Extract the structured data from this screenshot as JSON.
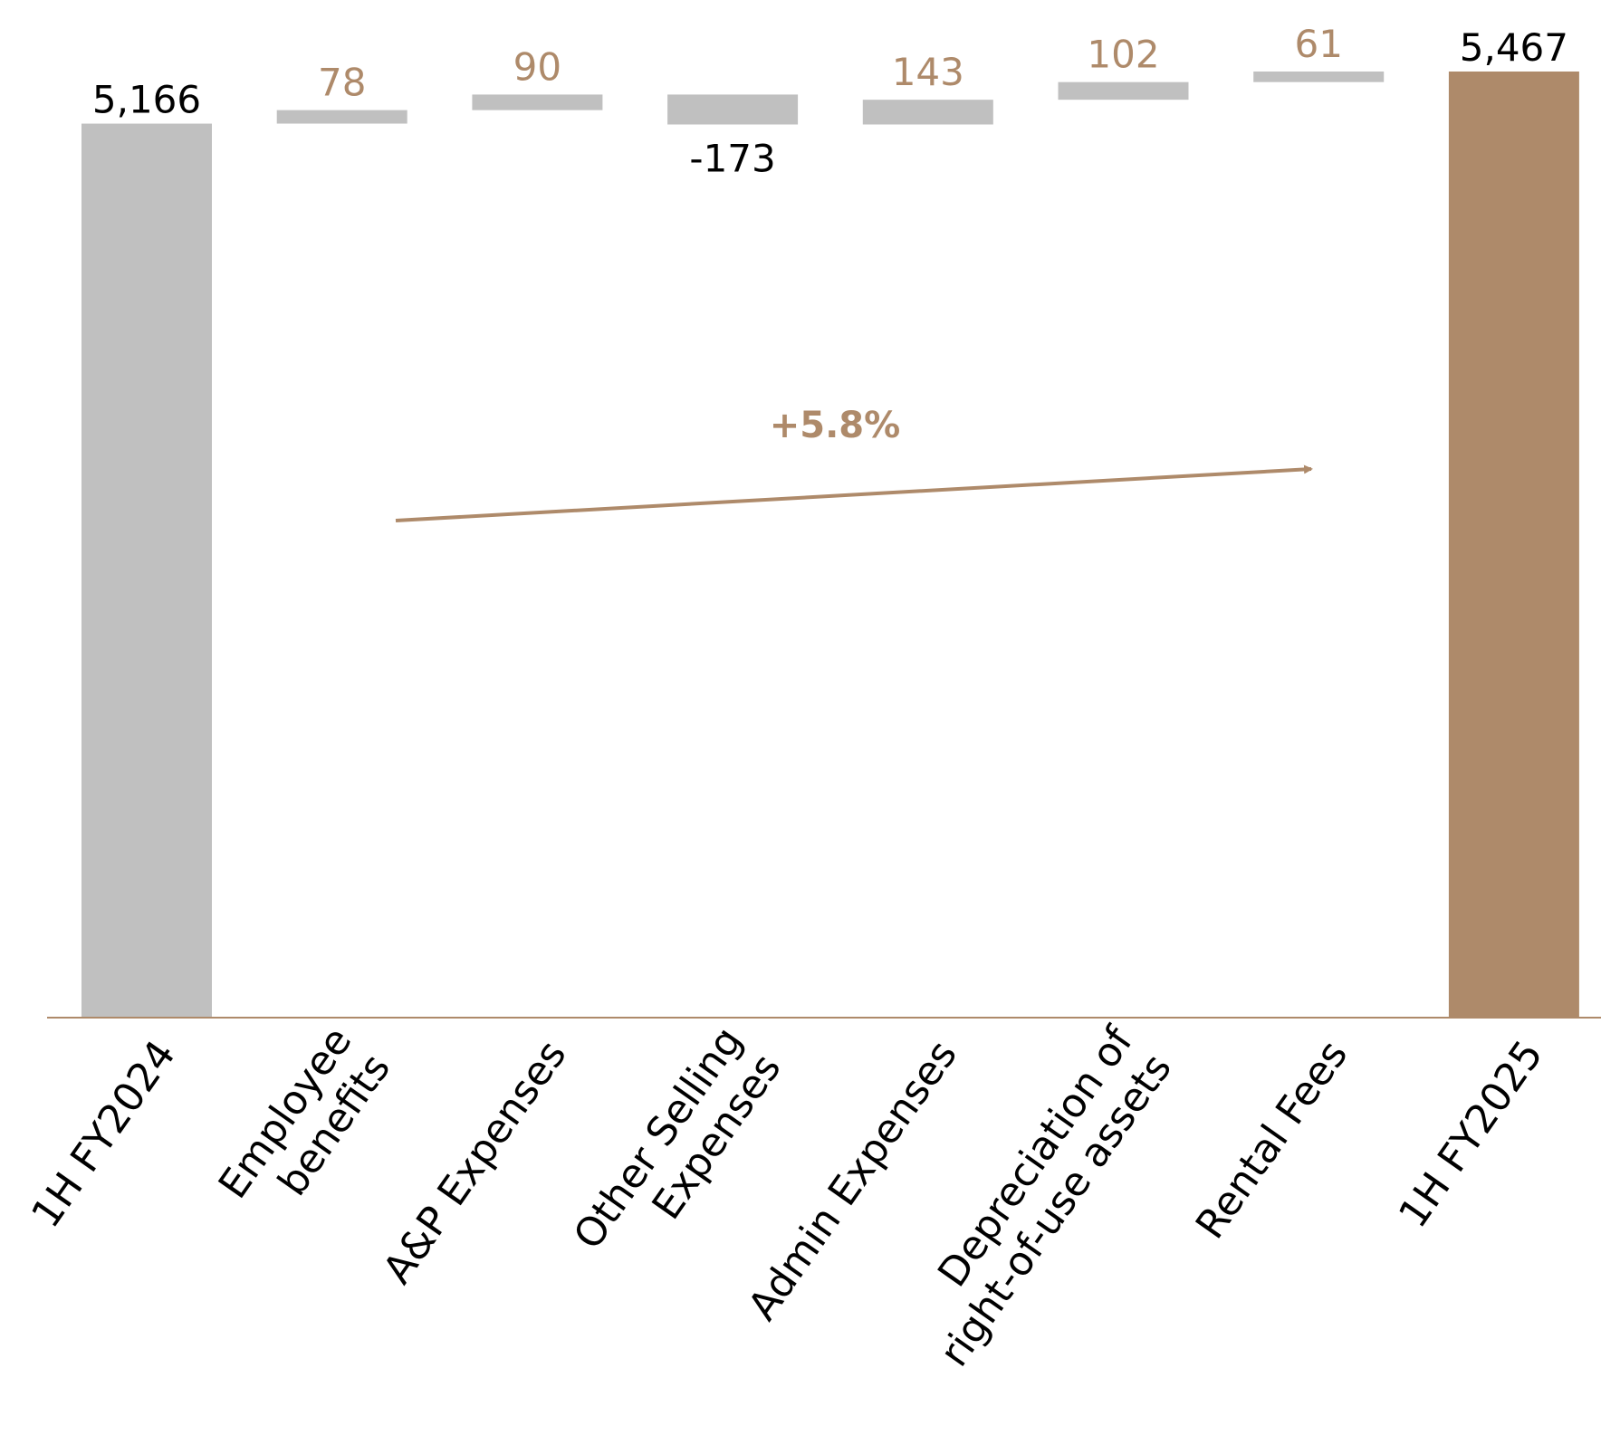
{
  "colors": {
    "total_start": "#c0c0c0",
    "step": "#c0c0c0",
    "total_end": "#ae8a6a",
    "positive_label": "#ae8a6a",
    "negative_label": "#000000",
    "total_label": "#000000",
    "axis": "#ae8a6a",
    "growth": "#ae8a6a"
  },
  "chart_data": {
    "type": "waterfall",
    "title": "",
    "xlabel": "",
    "ylabel": "",
    "categories": [
      "1H FY2024",
      "Employee benefits",
      "A&P Expenses",
      "Other Selling Expenses",
      "Admin Expenses",
      "Depreciation of right-of-use assets",
      "Rental Fees",
      "1H FY2025"
    ],
    "category_lines": [
      [
        "1H FY2024"
      ],
      [
        "Employee",
        "benefits"
      ],
      [
        "A&P Expenses"
      ],
      [
        "Other Selling",
        "Expenses"
      ],
      [
        "Admin Expenses"
      ],
      [
        "Depreciation of",
        "right-of-use assets"
      ],
      [
        "Rental Fees"
      ],
      [
        "1H FY2025"
      ]
    ],
    "values": [
      5166,
      78,
      90,
      -173,
      143,
      102,
      61,
      5467
    ],
    "labels": [
      "5,166",
      "78",
      "90",
      "-173",
      "143",
      "102",
      "61",
      "5,467"
    ],
    "kinds": [
      "total",
      "delta",
      "delta",
      "delta",
      "delta",
      "delta",
      "delta",
      "total"
    ],
    "growth_annotation": "+5.8%",
    "ylim": [
      0,
      5467
    ]
  }
}
